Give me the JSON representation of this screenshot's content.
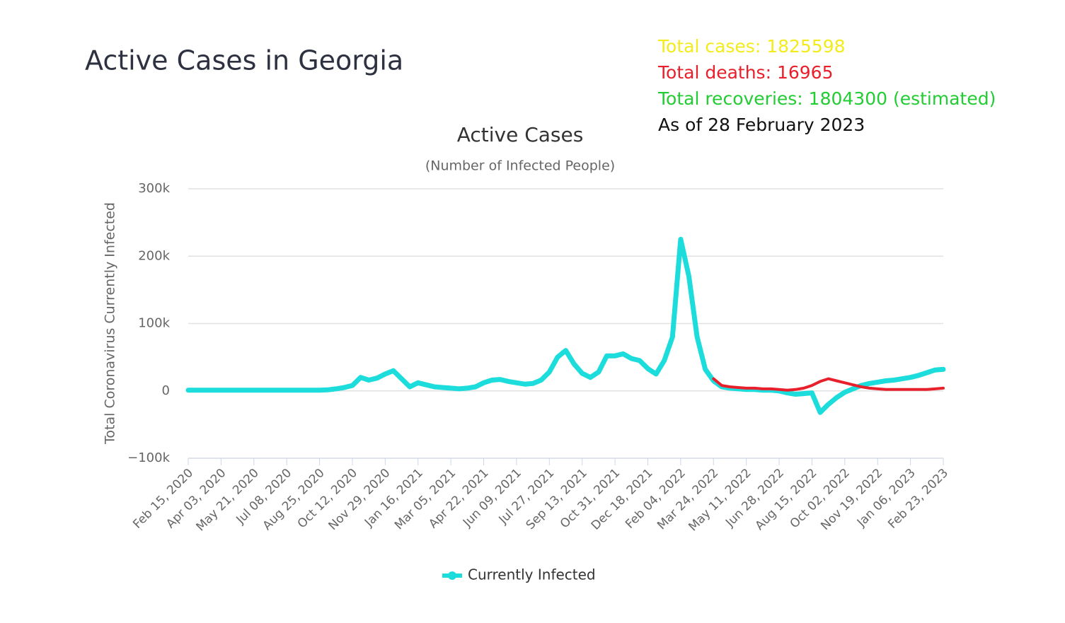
{
  "chart_data": {
    "type": "line",
    "heading": "Active Cases in Georgia",
    "title": "Active Cases",
    "subtitle": "(Number of Infected People)",
    "y_label": "Total Coronavirus Currently Infected",
    "annotations": [
      {
        "text": "Total cases: 1825598",
        "color": "#f2ec1c"
      },
      {
        "text": "Total deaths: 16965",
        "color": "#e8202c"
      },
      {
        "text": "Total recoveries: 1804300 (estimated)",
        "color": "#22cc33"
      },
      {
        "text": "As of 28 February 2023",
        "color": "#111111"
      }
    ],
    "categories": [
      "Feb 15, 2020",
      null,
      null,
      null,
      "Apr 03, 2020",
      null,
      null,
      null,
      "May 21, 2020",
      null,
      null,
      null,
      "Jul 08, 2020",
      null,
      null,
      null,
      "Aug 25, 2020",
      null,
      null,
      null,
      "Oct 12, 2020",
      null,
      null,
      null,
      "Nov 29, 2020",
      null,
      null,
      null,
      "Jan 16, 2021",
      null,
      null,
      null,
      "Mar 05, 2021",
      null,
      null,
      null,
      "Apr 22, 2021",
      null,
      null,
      null,
      "Jun 09, 2021",
      null,
      null,
      null,
      "Jul 27, 2021",
      null,
      null,
      null,
      "Sep 13, 2021",
      null,
      null,
      null,
      "Oct 31, 2021",
      null,
      null,
      null,
      "Dec 18, 2021",
      null,
      null,
      null,
      "Feb 04, 2022",
      null,
      null,
      null,
      "Mar 24, 2022",
      null,
      null,
      null,
      "May 11, 2022",
      null,
      null,
      null,
      "Jun 28, 2022",
      null,
      null,
      null,
      "Aug 15, 2022",
      null,
      null,
      null,
      "Oct 02, 2022",
      null,
      null,
      null,
      "Nov 19, 2022",
      null,
      null,
      null,
      "Jan 06, 2023",
      null,
      null,
      null,
      "Feb 23, 2023"
    ],
    "series": [
      {
        "name": "Currently Infected",
        "color": "#1ddcdc",
        "width": 7,
        "values": [
          1000,
          1000,
          1000,
          1000,
          1000,
          1000,
          1000,
          1000,
          1000,
          1000,
          1000,
          1000,
          1000,
          1000,
          1000,
          1000,
          1000,
          1500,
          3000,
          5000,
          8000,
          20000,
          16000,
          19000,
          25000,
          30000,
          18000,
          6000,
          12000,
          9000,
          6000,
          5000,
          4000,
          3000,
          4000,
          6000,
          12000,
          16000,
          17000,
          14000,
          12000,
          10000,
          11000,
          16000,
          28000,
          50000,
          60000,
          40000,
          26000,
          20000,
          28000,
          52000,
          52000,
          55000,
          48000,
          45000,
          33000,
          25000,
          45000,
          80000,
          225000,
          170000,
          80000,
          32000,
          15000,
          6000,
          4000,
          3000,
          2000,
          2000,
          1000,
          1000,
          0,
          -3000,
          -5000,
          -4000,
          -3000,
          -32000,
          -20000,
          -10000,
          -2000,
          3000,
          8000,
          11000,
          13000,
          15000,
          16000,
          18000,
          20000,
          23000,
          27000,
          31000,
          32000
        ]
      },
      {
        "color": "#e8202c",
        "width": 4,
        "values": [
          null,
          null,
          null,
          null,
          null,
          null,
          null,
          null,
          null,
          null,
          null,
          null,
          null,
          null,
          null,
          null,
          null,
          null,
          null,
          null,
          null,
          null,
          null,
          null,
          null,
          null,
          null,
          null,
          null,
          null,
          null,
          null,
          null,
          null,
          null,
          null,
          null,
          null,
          null,
          null,
          null,
          null,
          null,
          null,
          null,
          null,
          null,
          null,
          null,
          null,
          null,
          null,
          null,
          null,
          null,
          null,
          null,
          null,
          null,
          null,
          null,
          null,
          null,
          null,
          18000,
          8000,
          6000,
          5000,
          4000,
          4000,
          3000,
          3000,
          2000,
          1000,
          2000,
          4000,
          8000,
          14000,
          18000,
          15000,
          12000,
          9000,
          6000,
          4000,
          3000,
          2000,
          2000,
          2000,
          2000,
          2000,
          2000,
          3000,
          4000
        ]
      }
    ],
    "ylim": [
      -100000,
      300000
    ],
    "yticks": [
      {
        "value": -100000,
        "label": "−100k"
      },
      0,
      {
        "value": 100000,
        "label": "100k"
      },
      {
        "value": 200000,
        "label": "200k"
      },
      {
        "value": 300000,
        "label": "300k"
      }
    ],
    "grid": true,
    "legend": "bottom"
  }
}
